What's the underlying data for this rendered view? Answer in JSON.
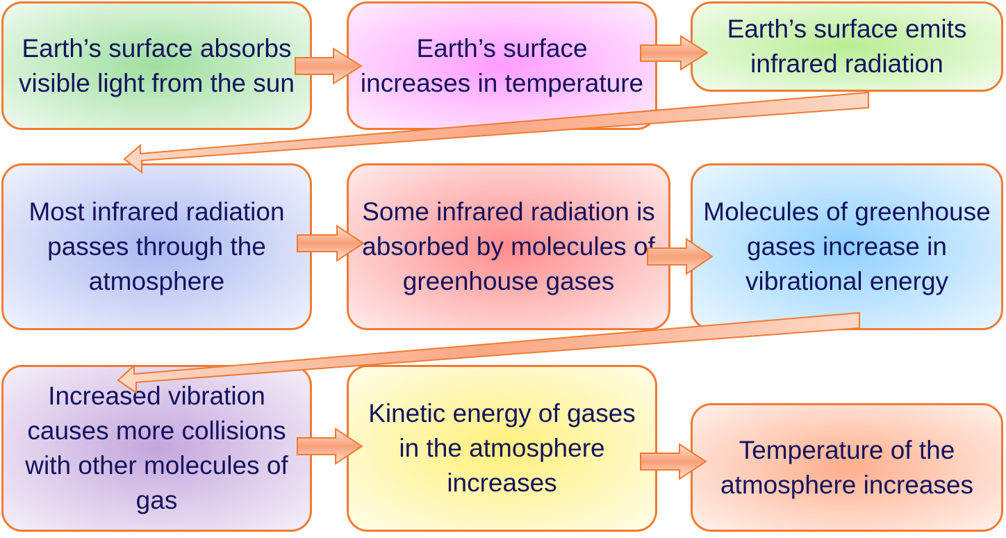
{
  "diagram": {
    "steps": [
      {
        "id": "b1",
        "text": "Earth’s surface absorbs visible light from the sun",
        "color": "#9fdf9f"
      },
      {
        "id": "b2",
        "text": "Earth’s surface increases in temperature",
        "color": "#ff9cff"
      },
      {
        "id": "b3",
        "text": "Earth’s surface emits infrared radiation",
        "color": "#b8ee94"
      },
      {
        "id": "b4",
        "text": "Most infrared radiation passes through the atmosphere",
        "color": "#a9b8f0"
      },
      {
        "id": "b5",
        "text": "Some infrared radiation is absorbed by molecules of greenhouse gases",
        "color": "#ff8c8c"
      },
      {
        "id": "b6",
        "text": "Molecules of greenhouse gases increase in vibrational energy",
        "color": "#8fd0ff"
      },
      {
        "id": "b7",
        "text": "Increased vibration causes more collisions with other molecules of gas",
        "color": "#c4a6dc"
      },
      {
        "id": "b8",
        "text": "Kinetic energy of gases in the atmosphere increases",
        "color": "#fff07a"
      },
      {
        "id": "b9",
        "text": "Temperature of the atmosphere increases",
        "color": "#ffae8c"
      }
    ],
    "accent": "#f07a32",
    "text_color": "#14125e"
  }
}
